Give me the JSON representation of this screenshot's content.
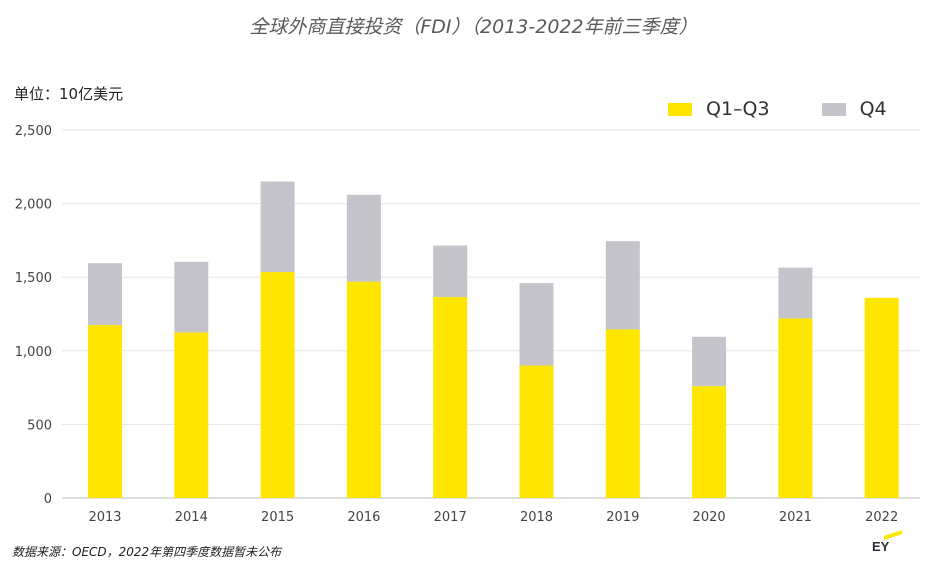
{
  "title": "全球外商直接投资（FDI）（2013-2022年前三季度）",
  "unit_label": "单位：10亿美元",
  "source": "数据来源：OECD，2022年第四季度数据暂未公布",
  "logo_text": "EY",
  "colors": {
    "q1q3": "#ffe600",
    "q4": "#c4c4ca",
    "grid": "#e6e6e6",
    "logo_beam": "#ffe600"
  },
  "chart_data": {
    "type": "bar",
    "stacked": true,
    "categories": [
      "2013",
      "2014",
      "2015",
      "2016",
      "2017",
      "2018",
      "2019",
      "2020",
      "2021",
      "2022"
    ],
    "series": [
      {
        "name": "Q1–Q3",
        "values": [
          1175,
          1125,
          1535,
          1470,
          1365,
          900,
          1145,
          760,
          1220,
          1360
        ]
      },
      {
        "name": "Q4",
        "values": [
          420,
          480,
          615,
          590,
          350,
          560,
          600,
          335,
          345,
          0
        ]
      }
    ],
    "ylim": [
      0,
      2500
    ],
    "yticks": [
      0,
      500,
      1000,
      1500,
      2000,
      2500
    ],
    "ytick_labels": [
      "0",
      "500",
      "1,000",
      "1,500",
      "2,000",
      "2,500"
    ],
    "grid": true,
    "legend_position": "top-right"
  }
}
